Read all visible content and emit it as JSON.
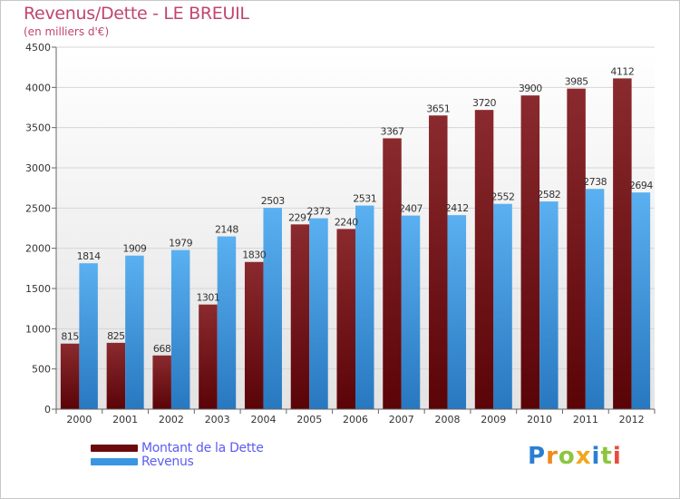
{
  "chart_data": {
    "type": "bar",
    "title": "Revenus/Dette - LE BREUIL",
    "subtitle": "(en milliers d'€)",
    "categories": [
      "2000",
      "2001",
      "2002",
      "2003",
      "2004",
      "2005",
      "2006",
      "2007",
      "2008",
      "2009",
      "2010",
      "2011",
      "2012"
    ],
    "series": [
      {
        "name": "Montant de la Dette",
        "color": "#7a1418",
        "values": [
          815,
          825,
          668,
          1301,
          1830,
          2297,
          2240,
          3367,
          3651,
          3720,
          3900,
          3985,
          4112
        ]
      },
      {
        "name": "Revenus",
        "color": "#3a96e0",
        "values": [
          1814,
          1909,
          1979,
          2148,
          2503,
          2373,
          2531,
          2407,
          2412,
          2552,
          2582,
          2738,
          2694
        ]
      }
    ],
    "value_labels": [
      [
        "815",
        "825",
        "668",
        "1301",
        "1830",
        "2297",
        "2240",
        "3367",
        "3651",
        "3720",
        "3900",
        "3985",
        "4112"
      ],
      [
        "1814",
        "1909",
        "1979",
        "2148",
        "2503",
        "2373",
        "2531",
        "2407",
        "2412",
        "2552",
        "2582",
        "2738",
        "2694"
      ]
    ],
    "ylim": [
      0,
      4500
    ],
    "yticks": [
      0,
      500,
      1000,
      1500,
      2000,
      2500,
      3000,
      3500,
      4000,
      4500
    ],
    "grid": true,
    "legend_position": "bottom-left"
  },
  "brand": {
    "letters": [
      "P",
      "r",
      "o",
      "x",
      "i",
      "t",
      "i"
    ],
    "colors": [
      "#2a7fd4",
      "#f08a1c",
      "#8cc63f",
      "#f0a81c",
      "#2a7fd4",
      "#8cc63f",
      "#e94b3c"
    ]
  }
}
